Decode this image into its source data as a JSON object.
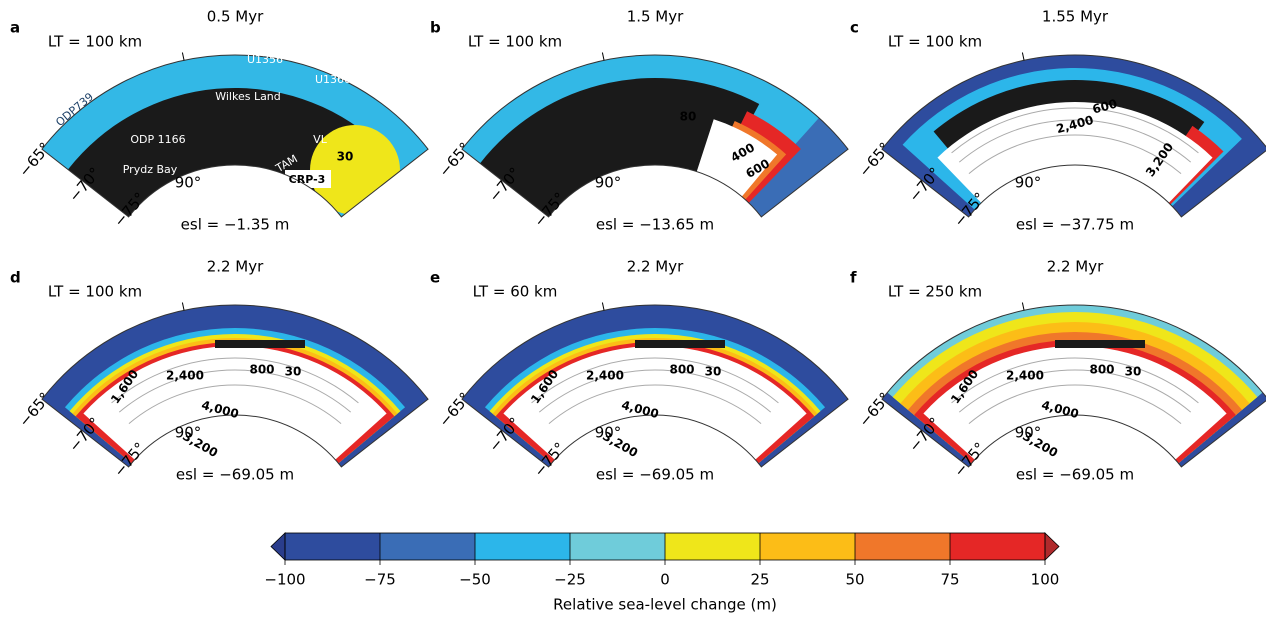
{
  "panels": [
    {
      "letter": "a",
      "time": "0.5 Myr",
      "lt": "LT = 100 km",
      "esl": "esl = −1.35 m",
      "labels": [
        "U1356",
        "U1360",
        "ODP739",
        "Wilkes Land",
        "ODP 1166",
        "VL",
        "Prydz Bay",
        "TAM",
        "30",
        "CRP-3"
      ]
    },
    {
      "letter": "b",
      "time": "1.5 Myr",
      "lt": "LT = 100 km",
      "esl": "esl = −13.65 m",
      "labels": [
        "80",
        "400",
        "600"
      ]
    },
    {
      "letter": "c",
      "time": "1.55 Myr",
      "lt": "LT = 100 km",
      "esl": "esl = −37.75 m",
      "labels": [
        "600",
        "2,400",
        "3,200"
      ]
    },
    {
      "letter": "d",
      "time": "2.2 Myr",
      "lt": "LT = 100 km",
      "esl": "esl = −69.05 m",
      "labels": [
        "30",
        "800",
        "2,400",
        "1,600",
        "4,000",
        "3,200"
      ]
    },
    {
      "letter": "e",
      "time": "2.2 Myr",
      "lt": "LT = 60 km",
      "esl": "esl = −69.05 m",
      "labels": [
        "30",
        "800",
        "2,400",
        "1,600",
        "4,000",
        "3,200"
      ]
    },
    {
      "letter": "f",
      "time": "2.2 Myr",
      "lt": "LT = 250 km",
      "esl": "esl = −69.05 m",
      "labels": [
        "30",
        "800",
        "2,400",
        "1,600",
        "4,000",
        "3,200"
      ]
    }
  ],
  "lat_labels": [
    "−65°",
    "−70°",
    "−75°",
    "90°"
  ],
  "colorbar": {
    "label": "Relative sea-level change (m)",
    "lim": [
      -100,
      100
    ],
    "ticks": [
      {
        "value": -100,
        "label": "−100"
      },
      {
        "value": -75,
        "label": "−75"
      },
      {
        "value": -50,
        "label": "−50"
      },
      {
        "value": -25,
        "label": "−25"
      },
      0,
      25,
      50,
      75,
      100
    ],
    "colors": [
      "#2e4c9e",
      "#3a6db6",
      "#2cb6ea",
      "#6fccda",
      "#efe61a",
      "#fcbd17",
      "#f0772a",
      "#e52726"
    ],
    "extend_colors": [
      "#2a3d8c",
      "#b02a2c"
    ]
  }
}
